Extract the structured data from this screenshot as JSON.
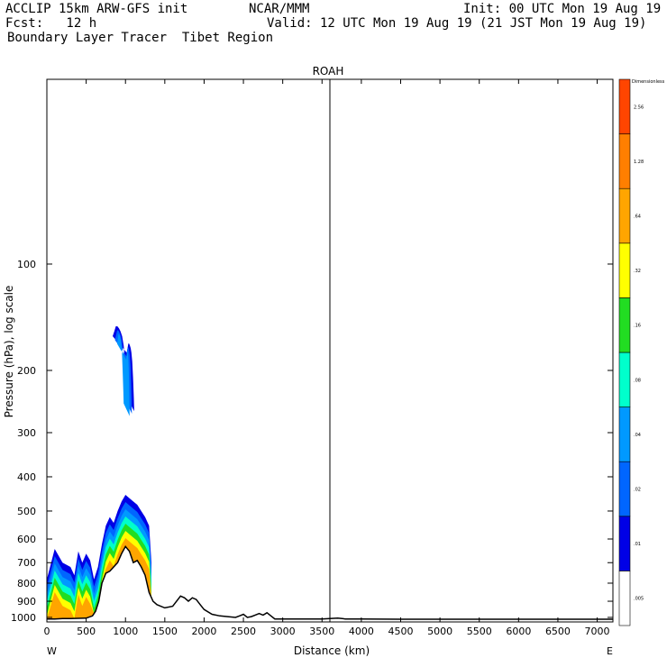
{
  "header": {
    "line1_left": "ACCLIP 15km ARW-GFS init",
    "line1_mid": "NCAR/MMM",
    "line1_right": "Init: 00 UTC Mon 19 Aug 19",
    "line2_left": "Fcst:   12 h",
    "line2_right": "Valid: 12 UTC Mon 19 Aug 19 (21 JST Mon 19 Aug 19)",
    "line3": "Boundary Layer Tracer  Tibet Region"
  },
  "chart_data": {
    "type": "heatmap",
    "title": "ROAH",
    "xlabel": "Distance (km)",
    "ylabel": "Pressure (hPa), log scale",
    "x_range": [
      0,
      7200
    ],
    "y_range_hpa": [
      1030,
      30
    ],
    "y_scale": "log",
    "x_ticks": [
      0,
      500,
      1000,
      1500,
      2000,
      2500,
      3000,
      3500,
      4000,
      4500,
      5000,
      5500,
      6000,
      6500,
      7000
    ],
    "y_ticks": [
      100,
      200,
      300,
      400,
      500,
      600,
      700,
      800,
      900,
      1000
    ],
    "x_end_labels": {
      "left": "W",
      "right": "E"
    },
    "marker_line_km": 3600,
    "colorbar": {
      "top_label": "Dimensionless",
      "levels": [
        ".005",
        ".01",
        ".02",
        ".04",
        ".08",
        ".16",
        ".32",
        ".64",
        "1.28",
        "2.56"
      ],
      "colors": [
        "#ffffff",
        "#0000e6",
        "#0066ff",
        "#0099ff",
        "#00ffcc",
        "#22dd22",
        "#ffff00",
        "#ffa500",
        "#ff7f00",
        "#ff4500"
      ]
    },
    "terrain_surface": {
      "x_km": [
        0,
        100,
        200,
        300,
        400,
        500,
        580,
        620,
        660,
        700,
        750,
        800,
        850,
        900,
        950,
        1000,
        1050,
        1100,
        1150,
        1200,
        1250,
        1300,
        1350,
        1400,
        1500,
        1600,
        1700,
        1750,
        1800,
        1850,
        1900,
        1950,
        2000,
        2100,
        2200,
        2300,
        2400,
        2450,
        2500,
        2550,
        2600,
        2650,
        2700,
        2750,
        2800,
        2850,
        2900,
        3000,
        3500,
        3700,
        3800,
        4000,
        4500,
        5000,
        6000,
        7200
      ],
      "p_hpa": [
        1010,
        1010,
        1008,
        1008,
        1006,
        1005,
        990,
        960,
        900,
        800,
        750,
        740,
        720,
        700,
        660,
        630,
        650,
        700,
        690,
        720,
        760,
        850,
        900,
        920,
        940,
        930,
        870,
        880,
        900,
        880,
        890,
        920,
        950,
        980,
        990,
        995,
        1000,
        990,
        980,
        1000,
        995,
        985,
        975,
        985,
        970,
        990,
        1010,
        1010,
        1010,
        1005,
        1010,
        1010,
        1012,
        1012,
        1012,
        1012
      ]
    },
    "tracer_plumes": [
      {
        "name": "",
        "x_km": [
          0,
          100,
          200,
          300,
          350,
          400,
          450,
          500,
          550,
          600,
          650,
          700,
          750,
          800,
          850,
          900,
          950,
          1000,
          1050,
          1100,
          1150,
          1200,
          1250,
          1300,
          1330
        ],
        "top_hpa": [
          780,
          640,
          700,
          720,
          760,
          650,
          700,
          660,
          690,
          780,
          720,
          620,
          550,
          520,
          540,
          500,
          470,
          450,
          460,
          470,
          480,
          500,
          520,
          550,
          700
        ]
      },
      {
        "name": "",
        "x_km": [
          860,
          880,
          900,
          920,
          940,
          960,
          980,
          1000,
          1020,
          1040,
          1050
        ],
        "top_hpa": [
          160,
          155,
          150,
          150,
          152,
          155,
          160,
          170,
          190,
          220,
          240
        ]
      }
    ]
  }
}
